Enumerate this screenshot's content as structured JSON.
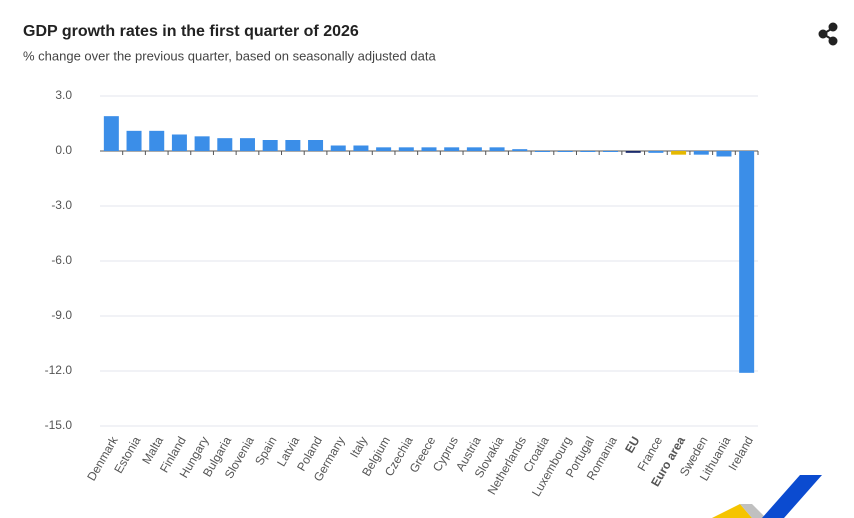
{
  "chart_data": {
    "type": "bar",
    "title": "GDP growth rates in the first quarter of 2026",
    "subtitle": "% change over the previous quarter, based on seasonally adjusted data",
    "categories": [
      "Denmark",
      "Estonia",
      "Malta",
      "Finland",
      "Hungary",
      "Bulgaria",
      "Slovenia",
      "Spain",
      "Latvia",
      "Poland",
      "Germany",
      "Italy",
      "Belgium",
      "Czechia",
      "Greece",
      "Cyprus",
      "Austria",
      "Slovakia",
      "Netherlands",
      "Croatia",
      "Luxembourg",
      "Portugal",
      "Romania",
      "EU",
      "France",
      "Euro area",
      "Sweden",
      "Lithuania",
      "Ireland"
    ],
    "values": [
      1.9,
      1.1,
      1.1,
      0.9,
      0.8,
      0.7,
      0.7,
      0.6,
      0.6,
      0.6,
      0.3,
      0.3,
      0.2,
      0.2,
      0.2,
      0.2,
      0.2,
      0.2,
      0.1,
      0.0,
      0.0,
      0.0,
      0.0,
      -0.1,
      -0.1,
      -0.2,
      -0.2,
      -0.3,
      -12.1
    ],
    "color": "#3b8ee8",
    "colors": [
      "#3b8ee8",
      "#3b8ee8",
      "#3b8ee8",
      "#3b8ee8",
      "#3b8ee8",
      "#3b8ee8",
      "#3b8ee8",
      "#3b8ee8",
      "#3b8ee8",
      "#3b8ee8",
      "#3b8ee8",
      "#3b8ee8",
      "#3b8ee8",
      "#3b8ee8",
      "#3b8ee8",
      "#3b8ee8",
      "#3b8ee8",
      "#3b8ee8",
      "#3b8ee8",
      "#3b8ee8",
      "#3b8ee8",
      "#3b8ee8",
      "#3b8ee8",
      "#1a2a6c",
      "#3b8ee8",
      "#e5b800",
      "#3b8ee8",
      "#3b8ee8",
      "#3b8ee8"
    ],
    "ylim": [
      -15,
      3
    ],
    "yticks": [
      {
        "value": 3,
        "label": "3.0"
      },
      {
        "value": 0,
        "label": "0.0"
      },
      {
        "value": -3,
        "label": "-3.0"
      },
      {
        "value": -6,
        "label": "-6.0"
      },
      {
        "value": -9,
        "label": "-9.0"
      },
      {
        "value": -12,
        "label": "-12.0"
      },
      {
        "value": -15,
        "label": "-15.0"
      }
    ],
    "grid": true
  }
}
